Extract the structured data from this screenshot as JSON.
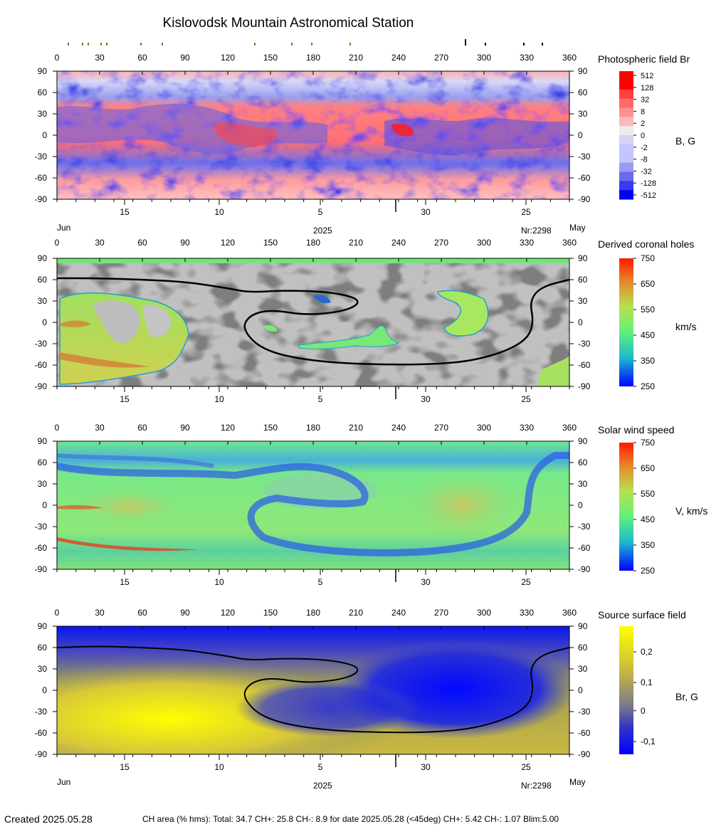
{
  "title": "Kislovodsk Mountain Astronomical Station",
  "colors": {
    "axis": "#000000",
    "background": "#ffffff",
    "ch_gray_dark": "#808080",
    "ch_gray_light": "#c0c0c0",
    "neutral_line": "#000000"
  },
  "top_marks": {
    "olive_ticks_lon": [
      8,
      18,
      22,
      31,
      35,
      59,
      74,
      139,
      165,
      179,
      206
    ],
    "black_ticks_lon": [
      287,
      301,
      328,
      341
    ]
  },
  "axes": {
    "lon_ticks": [
      "0",
      "30",
      "60",
      "90",
      "120",
      "150",
      "180",
      "210",
      "240",
      "270",
      "300",
      "330",
      "360"
    ],
    "lat_ticks": [
      "90",
      "60",
      "30",
      "0",
      "-30",
      "-60",
      "-90"
    ],
    "day_ticks": [
      {
        "label": "15",
        "lon": 47.5
      },
      {
        "label": "10",
        "lon": 114
      },
      {
        "label": "5",
        "lon": 185
      },
      {
        "label": "30",
        "lon": 259
      },
      {
        "label": "25",
        "lon": 329.5
      }
    ],
    "month_left": "Jun",
    "month_right": "May",
    "year": "2025",
    "rotation": "Nr:2298",
    "divider_lon": 238
  },
  "panels": [
    {
      "title": "Photospheric field Br",
      "unit": "B, G",
      "scale_labels": [
        "512",
        "128",
        "32",
        "8",
        "2",
        "0",
        "-2",
        "-8",
        "-32",
        "-128",
        "-512"
      ],
      "scale_colors": [
        "#ff0000",
        "#ff4040",
        "#ff6a6a",
        "#ff9090",
        "#ffb8b8",
        "#f0f0f0",
        "#c4c4ff",
        "#9a9af4",
        "#6a6af0",
        "#3a3af0",
        "#0000ff"
      ]
    },
    {
      "title": "Derived coronal holes",
      "unit": "km/s",
      "scale_labels": [
        "750",
        "650",
        "550",
        "450",
        "350",
        "250"
      ],
      "scale_colors": [
        "#ff2000",
        "#e08a20",
        "#bce050",
        "#60f070",
        "#20c0c8",
        "#0000ff"
      ]
    },
    {
      "title": "Solar wind speed",
      "unit": "V, km/s",
      "scale_labels": [
        "750",
        "650",
        "550",
        "450",
        "350",
        "250"
      ],
      "scale_colors": [
        "#ff2000",
        "#e08a20",
        "#bce050",
        "#60f070",
        "#20c0c8",
        "#0000ff"
      ]
    },
    {
      "title": "Source surface field",
      "unit": "Br, G",
      "scale_labels": [
        "0,2",
        "0,1",
        "0",
        "-0,1"
      ],
      "scale_colors": [
        "#ffff00",
        "#c8b840",
        "#7a7a8a",
        "#3030c8",
        "#0000ff"
      ]
    }
  ],
  "footer": {
    "created": "Created  2025.05.28",
    "stats": "CH area (% hms): Total: 34.7 CH+: 25.8   CH-: 8.9 for date 2025.05.28 (<45deg) CH+: 5.42    CH-: 1.07 Blim:5.00"
  },
  "chart_data": [
    {
      "type": "heatmap",
      "title": "Photospheric field Br",
      "xlabel": "",
      "ylabel": "",
      "xlim": [
        0,
        360
      ],
      "ylim": [
        -90,
        90
      ],
      "colorbar": "B, G",
      "colorbar_ticks": [
        512,
        128,
        32,
        8,
        2,
        0,
        -2,
        -8,
        -32,
        -128,
        -512
      ]
    },
    {
      "type": "heatmap",
      "title": "Derived coronal holes",
      "xlim": [
        0,
        360
      ],
      "ylim": [
        -90,
        90
      ],
      "colorbar": "km/s",
      "colorbar_ticks": [
        750,
        650,
        550,
        450,
        350,
        250
      ],
      "neutral_line": [
        [
          0,
          62
        ],
        [
          30,
          62
        ],
        [
          60,
          60
        ],
        [
          90,
          57
        ],
        [
          120,
          48
        ],
        [
          135,
          42
        ],
        [
          160,
          45
        ],
        [
          190,
          43
        ],
        [
          210,
          35
        ],
        [
          212,
          25
        ],
        [
          200,
          15
        ],
        [
          175,
          10
        ],
        [
          150,
          18
        ],
        [
          135,
          10
        ],
        [
          130,
          -10
        ],
        [
          145,
          -40
        ],
        [
          180,
          -55
        ],
        [
          230,
          -60
        ],
        [
          280,
          -58
        ],
        [
          310,
          -45
        ],
        [
          330,
          -25
        ],
        [
          335,
          0
        ],
        [
          332,
          30
        ],
        [
          340,
          50
        ],
        [
          360,
          60
        ]
      ]
    },
    {
      "type": "heatmap",
      "title": "Solar wind speed",
      "xlim": [
        0,
        360
      ],
      "ylim": [
        -90,
        90
      ],
      "colorbar": "V, km/s",
      "colorbar_ticks": [
        750,
        650,
        550,
        450,
        350,
        250
      ]
    },
    {
      "type": "heatmap",
      "title": "Source surface field",
      "xlim": [
        0,
        360
      ],
      "ylim": [
        -90,
        90
      ],
      "colorbar": "Br, G",
      "colorbar_ticks": [
        0.2,
        0.1,
        0,
        -0.1
      ],
      "neutral_line": [
        [
          0,
          60
        ],
        [
          30,
          62
        ],
        [
          60,
          60
        ],
        [
          90,
          57
        ],
        [
          120,
          48
        ],
        [
          135,
          42
        ],
        [
          160,
          45
        ],
        [
          190,
          43
        ],
        [
          210,
          35
        ],
        [
          212,
          25
        ],
        [
          200,
          15
        ],
        [
          175,
          10
        ],
        [
          150,
          18
        ],
        [
          135,
          10
        ],
        [
          130,
          -10
        ],
        [
          145,
          -40
        ],
        [
          180,
          -55
        ],
        [
          230,
          -60
        ],
        [
          280,
          -58
        ],
        [
          310,
          -45
        ],
        [
          330,
          -25
        ],
        [
          335,
          0
        ],
        [
          332,
          30
        ],
        [
          340,
          50
        ],
        [
          360,
          60
        ]
      ]
    }
  ]
}
